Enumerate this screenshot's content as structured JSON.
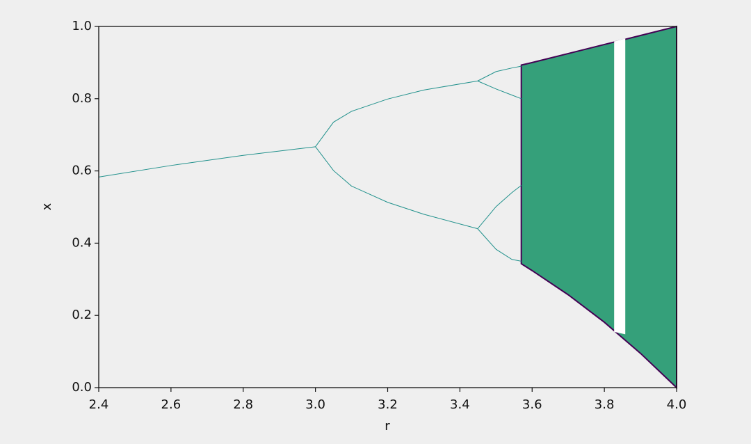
{
  "chart_data": {
    "type": "line",
    "xlabel": "r",
    "ylabel": "x",
    "xlim": [
      2.4,
      4.0
    ],
    "ylim": [
      0,
      1
    ],
    "xticks": [
      2.4,
      2.6,
      2.8,
      {
        "value": 3,
        "label": "3.0"
      },
      3.2,
      3.4,
      3.6,
      3.8,
      {
        "value": 4,
        "label": "4.0"
      }
    ],
    "yticks": [
      {
        "value": 0,
        "label": "0.0"
      },
      0.2,
      0.4,
      0.6,
      0.8,
      {
        "value": 1,
        "label": "1.0"
      }
    ],
    "series": [
      {
        "color": "#21918c",
        "x": [
          2.4,
          2.6,
          2.8,
          3.0
        ],
        "values": [
          0.583,
          0.615,
          0.643,
          0.667
        ]
      },
      {
        "color": "#21918c",
        "x": [
          3.0,
          3.05,
          3.1,
          3.2,
          3.3,
          3.449
        ],
        "values": [
          0.667,
          0.735,
          0.765,
          0.799,
          0.824,
          0.849
        ]
      },
      {
        "color": "#21918c",
        "x": [
          3.0,
          3.05,
          3.1,
          3.2,
          3.3,
          3.449
        ],
        "values": [
          0.667,
          0.601,
          0.558,
          0.513,
          0.48,
          0.44
        ]
      },
      {
        "color": "#21918c",
        "x": [
          3.449,
          3.5,
          3.544,
          3.57
        ],
        "values": [
          0.849,
          0.875,
          0.885,
          0.89
        ]
      },
      {
        "color": "#21918c",
        "x": [
          3.449,
          3.5,
          3.544,
          3.57
        ],
        "values": [
          0.849,
          0.827,
          0.81,
          0.8
        ]
      },
      {
        "color": "#21918c",
        "x": [
          3.449,
          3.5,
          3.544,
          3.57
        ],
        "values": [
          0.44,
          0.501,
          0.54,
          0.56
        ]
      },
      {
        "color": "#21918c",
        "x": [
          3.449,
          3.5,
          3.544,
          3.57
        ],
        "values": [
          0.44,
          0.383,
          0.355,
          0.35
        ]
      }
    ],
    "bands": [
      {
        "color": "#35a07a",
        "edge_color": "#440154",
        "x": [
          3.57,
          3.6,
          3.7,
          3.8,
          3.9,
          4.0
        ],
        "high": [
          0.893,
          0.9,
          0.925,
          0.95,
          0.975,
          1.0
        ],
        "low": [
          0.343,
          0.324,
          0.257,
          0.181,
          0.095,
          0.0
        ]
      },
      {
        "color": "#ffffff",
        "edge_color": "#ffffff",
        "x": [
          3.829,
          3.856
        ],
        "high": [
          0.957,
          0.964
        ],
        "low": [
          0.156,
          0.15
        ]
      }
    ]
  }
}
